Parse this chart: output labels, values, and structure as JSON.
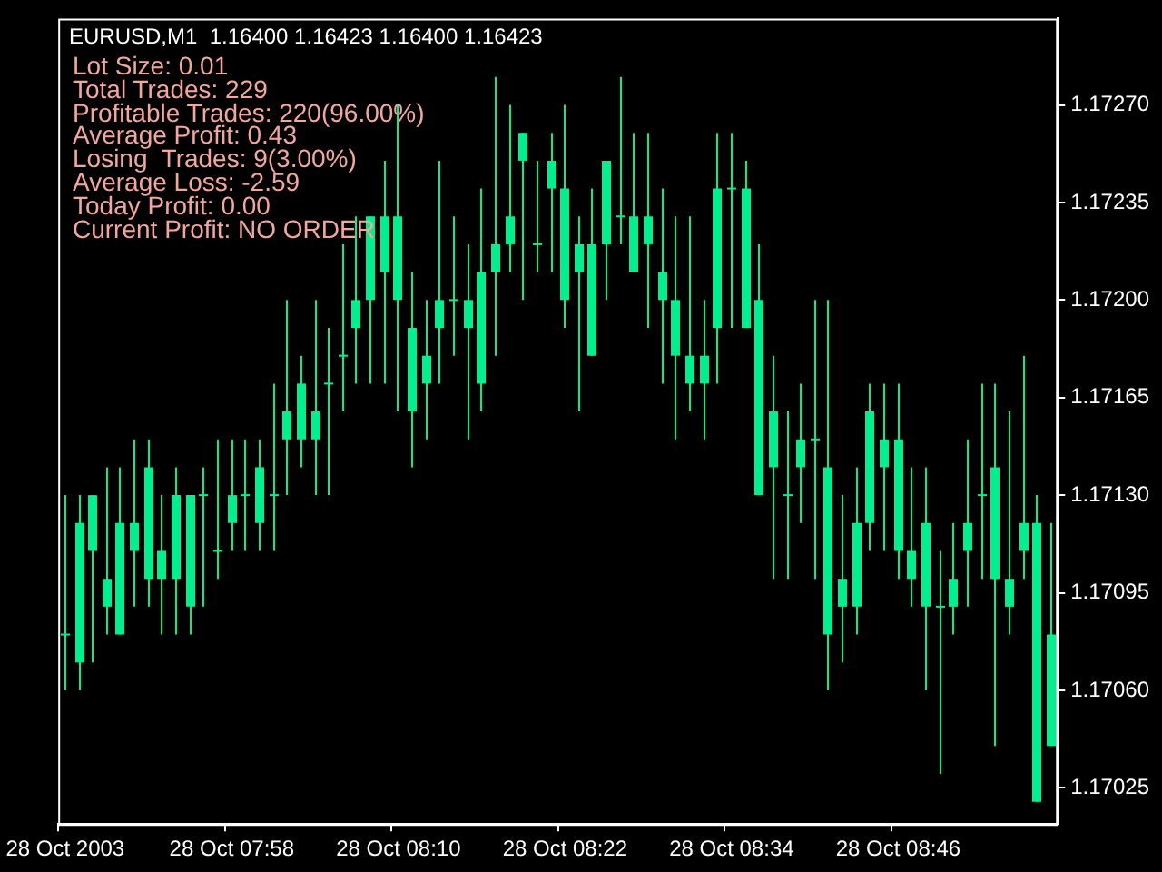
{
  "chart_data": {
    "type": "candlestick",
    "title": "EURUSD,M1  1.16400 1.16423 1.16400 1.16423",
    "annotations": [
      "Lot Size: 0.01",
      "Total Trades: 229",
      "Profitable Trades: 220(96.00%)",
      "Average Profit: 0.43",
      "Losing  Trades: 9(3.00%)",
      "Average Loss: -2.59",
      "Today Profit: 0.00",
      "Current Profit: NO ORDER"
    ],
    "categories": [
      "28 Oct 2003",
      null,
      null,
      null,
      null,
      null,
      null,
      null,
      null,
      null,
      null,
      null,
      "28 Oct 07:58",
      null,
      null,
      null,
      null,
      null,
      null,
      null,
      null,
      null,
      null,
      null,
      "28 Oct 08:10",
      null,
      null,
      null,
      null,
      null,
      null,
      null,
      null,
      null,
      null,
      null,
      "28 Oct 08:22",
      null,
      null,
      null,
      null,
      null,
      null,
      null,
      null,
      null,
      null,
      null,
      "28 Oct 08:34",
      null,
      null,
      null,
      null,
      null,
      null,
      null,
      null,
      null,
      null,
      null,
      "28 Oct 08:46",
      null,
      null,
      null,
      null,
      null,
      null,
      null,
      null,
      null,
      null,
      null
    ],
    "ohlc": [
      [
        1.1708,
        1.1713,
        1.1706,
        1.1708
      ],
      [
        1.1707,
        1.1713,
        1.1706,
        1.1712
      ],
      [
        1.1711,
        1.1713,
        1.1707,
        1.1713
      ],
      [
        1.1709,
        1.1714,
        1.1708,
        1.171
      ],
      [
        1.1708,
        1.1714,
        1.1708,
        1.1712
      ],
      [
        1.1711,
        1.1715,
        1.1709,
        1.1712
      ],
      [
        1.171,
        1.1715,
        1.1709,
        1.1714
      ],
      [
        1.171,
        1.1713,
        1.1708,
        1.1711
      ],
      [
        1.171,
        1.1714,
        1.1708,
        1.1713
      ],
      [
        1.1709,
        1.1713,
        1.1708,
        1.1713
      ],
      [
        1.1713,
        1.1714,
        1.1709,
        1.1713
      ],
      [
        1.1711,
        1.1715,
        1.171,
        1.1711
      ],
      [
        1.1712,
        1.1715,
        1.1711,
        1.1713
      ],
      [
        1.1713,
        1.1715,
        1.1711,
        1.1713
      ],
      [
        1.1712,
        1.1715,
        1.1711,
        1.1714
      ],
      [
        1.1713,
        1.1717,
        1.1711,
        1.1713
      ],
      [
        1.1715,
        1.172,
        1.1713,
        1.1716
      ],
      [
        1.1715,
        1.1718,
        1.1714,
        1.1717
      ],
      [
        1.1715,
        1.172,
        1.1713,
        1.1716
      ],
      [
        1.1717,
        1.1719,
        1.1713,
        1.1717
      ],
      [
        1.1718,
        1.1722,
        1.1716,
        1.1718
      ],
      [
        1.1719,
        1.1723,
        1.1717,
        1.172
      ],
      [
        1.172,
        1.1723,
        1.1717,
        1.1723
      ],
      [
        1.1721,
        1.1725,
        1.1717,
        1.1723
      ],
      [
        1.172,
        1.1727,
        1.1716,
        1.1723
      ],
      [
        1.1716,
        1.1721,
        1.1714,
        1.1719
      ],
      [
        1.1717,
        1.172,
        1.1715,
        1.1718
      ],
      [
        1.1719,
        1.1725,
        1.1717,
        1.172
      ],
      [
        1.172,
        1.1723,
        1.1718,
        1.172
      ],
      [
        1.1719,
        1.1722,
        1.1715,
        1.172
      ],
      [
        1.1717,
        1.1724,
        1.1716,
        1.1721
      ],
      [
        1.1721,
        1.1728,
        1.1718,
        1.1722
      ],
      [
        1.1722,
        1.1727,
        1.1721,
        1.1723
      ],
      [
        1.1725,
        1.1726,
        1.172,
        1.1726
      ],
      [
        1.1722,
        1.1725,
        1.1721,
        1.1722
      ],
      [
        1.1724,
        1.1726,
        1.1721,
        1.1725
      ],
      [
        1.172,
        1.1727,
        1.1719,
        1.1724
      ],
      [
        1.1721,
        1.1723,
        1.1716,
        1.1722
      ],
      [
        1.1718,
        1.1724,
        1.1718,
        1.1722
      ],
      [
        1.1722,
        1.1725,
        1.172,
        1.1725
      ],
      [
        1.1723,
        1.1728,
        1.1722,
        1.1723
      ],
      [
        1.1721,
        1.1726,
        1.1721,
        1.1723
      ],
      [
        1.1722,
        1.1726,
        1.1719,
        1.1723
      ],
      [
        1.172,
        1.1724,
        1.1717,
        1.1721
      ],
      [
        1.1718,
        1.1723,
        1.1715,
        1.172
      ],
      [
        1.1717,
        1.1723,
        1.1716,
        1.1718
      ],
      [
        1.1717,
        1.172,
        1.1715,
        1.1718
      ],
      [
        1.1719,
        1.1726,
        1.1717,
        1.1724
      ],
      [
        1.1724,
        1.1726,
        1.1719,
        1.1724
      ],
      [
        1.1719,
        1.1725,
        1.1719,
        1.1724
      ],
      [
        1.1713,
        1.1722,
        1.1713,
        1.172
      ],
      [
        1.1714,
        1.1718,
        1.171,
        1.1716
      ],
      [
        1.1713,
        1.1716,
        1.171,
        1.1713
      ],
      [
        1.1714,
        1.1717,
        1.1712,
        1.1715
      ],
      [
        1.1715,
        1.172,
        1.171,
        1.1715
      ],
      [
        1.1708,
        1.172,
        1.1706,
        1.1714
      ],
      [
        1.1709,
        1.1713,
        1.1707,
        1.171
      ],
      [
        1.1709,
        1.1714,
        1.1708,
        1.1712
      ],
      [
        1.1712,
        1.1717,
        1.1711,
        1.1716
      ],
      [
        1.1714,
        1.1717,
        1.1711,
        1.1715
      ],
      [
        1.1711,
        1.1717,
        1.171,
        1.1715
      ],
      [
        1.171,
        1.1714,
        1.1709,
        1.1711
      ],
      [
        1.1709,
        1.1714,
        1.1706,
        1.1712
      ],
      [
        1.1709,
        1.1711,
        1.1703,
        1.1709
      ],
      [
        1.1709,
        1.1712,
        1.1708,
        1.171
      ],
      [
        1.1711,
        1.1715,
        1.1709,
        1.1712
      ],
      [
        1.1713,
        1.1717,
        1.171,
        1.1713
      ],
      [
        1.171,
        1.1717,
        1.1704,
        1.1714
      ],
      [
        1.1709,
        1.1716,
        1.1708,
        1.171
      ],
      [
        1.1711,
        1.1718,
        1.171,
        1.1712
      ],
      [
        1.1702,
        1.1713,
        1.1702,
        1.1712
      ],
      [
        1.1704,
        1.1712,
        1.1704,
        1.1708
      ]
    ],
    "color": "#00f090",
    "ylim": [
      1.17012,
      1.17301
    ],
    "yticks": [
      {
        "value": 1.17025,
        "label": "1.17025"
      },
      {
        "value": 1.1706,
        "label": "1.17060"
      },
      {
        "value": 1.17095,
        "label": "1.17095"
      },
      {
        "value": 1.1713,
        "label": "1.17130"
      },
      {
        "value": 1.17165,
        "label": "1.17165"
      },
      {
        "value": 1.172,
        "label": "1.17200"
      },
      {
        "value": 1.17235,
        "label": "1.17235"
      },
      {
        "value": 1.1727,
        "label": "1.17270"
      }
    ],
    "grid": false
  }
}
